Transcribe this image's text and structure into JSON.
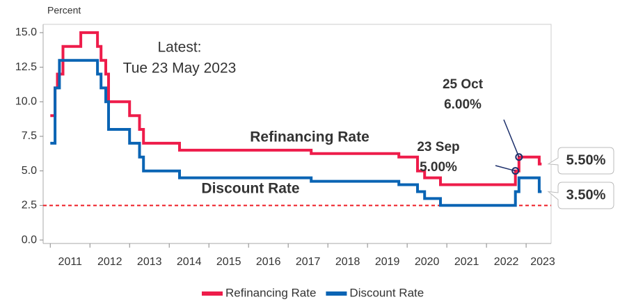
{
  "chart_data": {
    "type": "line",
    "y_axis_label": "Percent",
    "xlim": [
      2010.82,
      2023.63
    ],
    "xticks": [
      2011,
      2012,
      2013,
      2014,
      2015,
      2016,
      2017,
      2018,
      2019,
      2020,
      2021,
      2022,
      2023
    ],
    "ylim": [
      -0.25,
      15.6
    ],
    "yticks": [
      {
        "value": 0,
        "label": "0.0"
      },
      {
        "value": 2.5,
        "label": "2.5"
      },
      {
        "value": 5,
        "label": "5.0"
      },
      {
        "value": 7.5,
        "label": "7.5"
      },
      {
        "value": 10,
        "label": "10.0"
      },
      {
        "value": 12.5,
        "label": "12.5"
      },
      {
        "value": 15,
        "label": "15.0"
      }
    ],
    "reference_line": {
      "value": 2.5,
      "color": "#ee1c25"
    },
    "legend": "bottom",
    "series": [
      {
        "name": "Refinancing Rate",
        "color": "#ee1c4a",
        "inline_label": "Refinancing Rate",
        "end_label": "5.50%",
        "x": [
          2011.0,
          2011.12,
          2011.12,
          2011.18,
          2011.18,
          2011.32,
          2011.32,
          2011.77,
          2011.77,
          2012.19,
          2012.19,
          2012.28,
          2012.28,
          2012.4,
          2012.4,
          2012.47,
          2012.47,
          2013.0,
          2013.0,
          2013.25,
          2013.25,
          2013.35,
          2013.35,
          2014.26,
          2014.26,
          2017.58,
          2017.58,
          2019.79,
          2019.79,
          2020.26,
          2020.26,
          2020.44,
          2020.44,
          2020.84,
          2020.84,
          2022.73,
          2022.73,
          2022.82,
          2022.82,
          2023.33,
          2023.33,
          2023.39
        ],
        "values": [
          9,
          9,
          11,
          11,
          12,
          12,
          14,
          14,
          15,
          15,
          14,
          14,
          13,
          13,
          12,
          12,
          10,
          10,
          9,
          9,
          8,
          8,
          7,
          7,
          6.5,
          6.5,
          6.25,
          6.25,
          6,
          6,
          5,
          5,
          4.5,
          4.5,
          4,
          4,
          5,
          5,
          6,
          6,
          5.5,
          5.5
        ]
      },
      {
        "name": "Discount Rate",
        "color": "#0a64b4",
        "inline_label": "Discount Rate",
        "end_label": "3.50%",
        "x": [
          2011.0,
          2011.12,
          2011.12,
          2011.23,
          2011.23,
          2012.19,
          2012.19,
          2012.28,
          2012.28,
          2012.4,
          2012.4,
          2012.47,
          2012.47,
          2013.0,
          2013.0,
          2013.25,
          2013.25,
          2013.35,
          2013.35,
          2014.26,
          2014.26,
          2017.58,
          2017.58,
          2019.79,
          2019.79,
          2020.26,
          2020.26,
          2020.44,
          2020.44,
          2020.84,
          2020.84,
          2022.73,
          2022.73,
          2022.82,
          2022.82,
          2023.33,
          2023.33,
          2023.39
        ],
        "values": [
          7,
          7,
          11,
          11,
          13,
          13,
          12,
          12,
          11,
          11,
          10,
          10,
          8,
          8,
          7,
          7,
          6,
          6,
          5,
          5,
          4.5,
          4.5,
          4.25,
          4.25,
          4,
          4,
          3.5,
          3.5,
          3,
          3,
          2.5,
          2.5,
          3.5,
          3.5,
          4.5,
          4.5,
          3.5,
          3.5
        ]
      }
    ],
    "latest": [
      "Latest:",
      "Tue 23 May 2023"
    ],
    "annotations": [
      {
        "lines": [
          "23 Sep",
          "5.00%"
        ],
        "x": 2022.73,
        "y": 5
      },
      {
        "lines": [
          "25 Oct",
          "6.00%"
        ],
        "x": 2022.82,
        "y": 6
      }
    ]
  }
}
